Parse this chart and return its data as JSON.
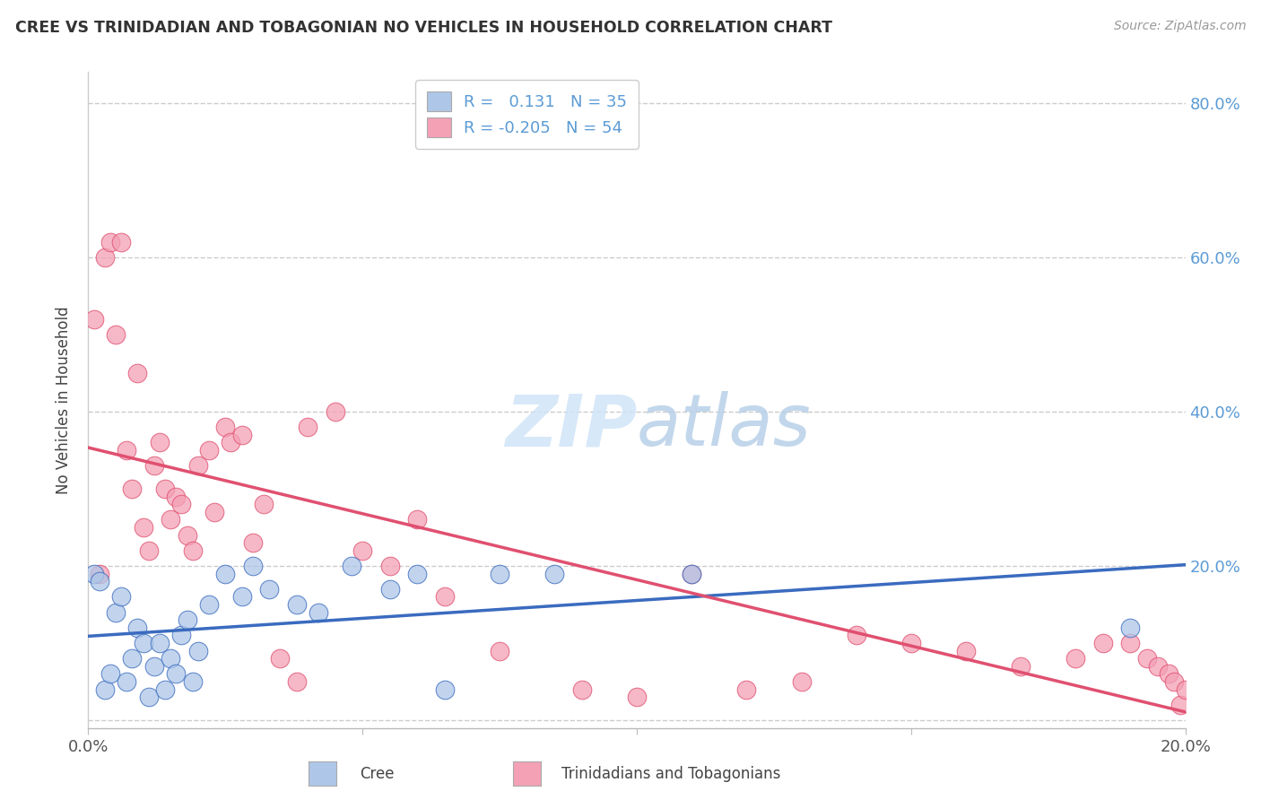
{
  "title": "CREE VS TRINIDADIAN AND TOBAGONIAN NO VEHICLES IN HOUSEHOLD CORRELATION CHART",
  "source": "Source: ZipAtlas.com",
  "ylabel": "No Vehicles in Household",
  "x_min": 0.0,
  "x_max": 0.2,
  "y_min": -0.01,
  "y_max": 0.84,
  "cree_color": "#aec6e8",
  "cree_line_color": "#3a6bbf",
  "tnt_color": "#f4a0b5",
  "tnt_line_color": "#e05070",
  "R_cree": 0.131,
  "N_cree": 35,
  "R_tnt": -0.205,
  "N_tnt": 54,
  "background_color": "#ffffff",
  "cree_x": [
    0.001,
    0.002,
    0.003,
    0.004,
    0.005,
    0.006,
    0.007,
    0.008,
    0.009,
    0.01,
    0.011,
    0.012,
    0.013,
    0.014,
    0.015,
    0.016,
    0.017,
    0.018,
    0.019,
    0.02,
    0.022,
    0.025,
    0.028,
    0.03,
    0.033,
    0.038,
    0.042,
    0.048,
    0.055,
    0.06,
    0.065,
    0.075,
    0.085,
    0.11,
    0.19
  ],
  "cree_y": [
    0.19,
    0.18,
    0.04,
    0.06,
    0.14,
    0.16,
    0.05,
    0.08,
    0.12,
    0.1,
    0.03,
    0.07,
    0.1,
    0.04,
    0.08,
    0.06,
    0.11,
    0.13,
    0.05,
    0.09,
    0.15,
    0.19,
    0.16,
    0.2,
    0.17,
    0.15,
    0.14,
    0.2,
    0.17,
    0.19,
    0.04,
    0.19,
    0.19,
    0.19,
    0.12
  ],
  "tnt_x": [
    0.001,
    0.002,
    0.003,
    0.004,
    0.005,
    0.006,
    0.007,
    0.008,
    0.009,
    0.01,
    0.011,
    0.012,
    0.013,
    0.014,
    0.015,
    0.016,
    0.017,
    0.018,
    0.019,
    0.02,
    0.022,
    0.023,
    0.025,
    0.026,
    0.028,
    0.03,
    0.032,
    0.035,
    0.038,
    0.04,
    0.045,
    0.05,
    0.055,
    0.06,
    0.065,
    0.075,
    0.09,
    0.1,
    0.11,
    0.12,
    0.13,
    0.14,
    0.15,
    0.16,
    0.17,
    0.18,
    0.185,
    0.19,
    0.193,
    0.195,
    0.197,
    0.198,
    0.199,
    0.2
  ],
  "tnt_y": [
    0.52,
    0.19,
    0.6,
    0.62,
    0.5,
    0.62,
    0.35,
    0.3,
    0.45,
    0.25,
    0.22,
    0.33,
    0.36,
    0.3,
    0.26,
    0.29,
    0.28,
    0.24,
    0.22,
    0.33,
    0.35,
    0.27,
    0.38,
    0.36,
    0.37,
    0.23,
    0.28,
    0.08,
    0.05,
    0.38,
    0.4,
    0.22,
    0.2,
    0.26,
    0.16,
    0.09,
    0.04,
    0.03,
    0.19,
    0.04,
    0.05,
    0.11,
    0.1,
    0.09,
    0.07,
    0.08,
    0.1,
    0.1,
    0.08,
    0.07,
    0.06,
    0.05,
    0.02,
    0.04
  ]
}
